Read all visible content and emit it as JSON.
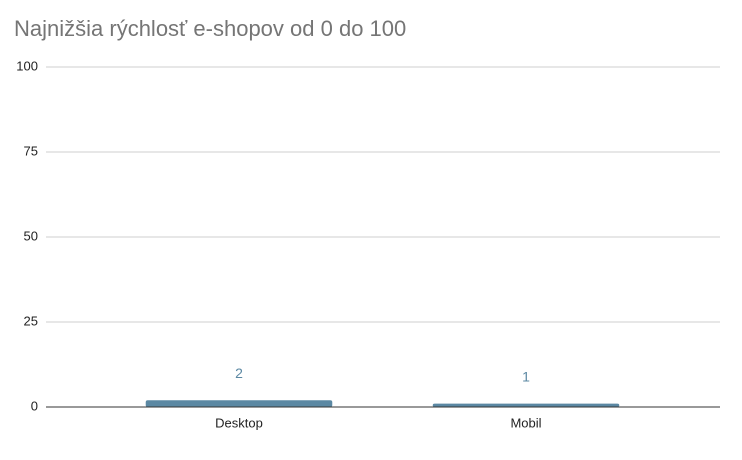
{
  "chart_data": {
    "type": "bar",
    "title": "Najnižšia rýchlosť e-shopov od 0 do 100",
    "categories": [
      "Desktop",
      "Mobil"
    ],
    "values": [
      2,
      1
    ],
    "color": "#5b88a3",
    "ylim": [
      0,
      100
    ],
    "yticks": [
      0,
      25,
      50,
      75,
      100
    ],
    "grid": true
  }
}
